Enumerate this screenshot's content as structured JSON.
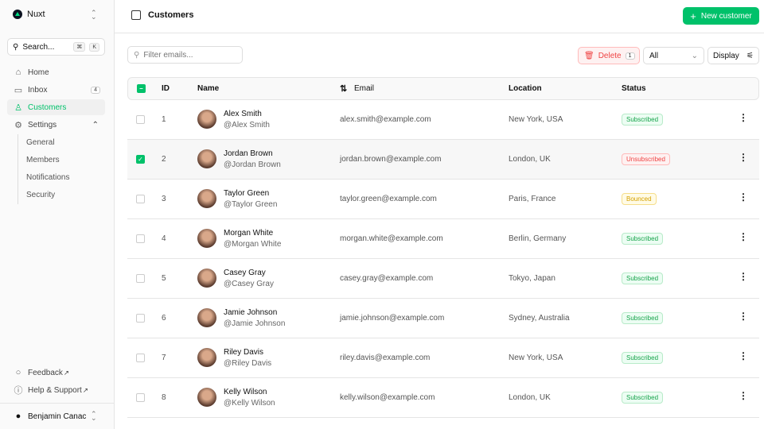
{
  "sidebar": {
    "brand": "Nuxt",
    "search": "Search...",
    "kbd": [
      "⌘",
      "K"
    ],
    "items": [
      {
        "label": "Home",
        "icon": "home-icon"
      },
      {
        "label": "Inbox",
        "icon": "inbox-icon",
        "badge": "4"
      },
      {
        "label": "Customers",
        "icon": "users-icon"
      },
      {
        "label": "Settings",
        "icon": "gear-icon"
      }
    ],
    "settings_sub": [
      "General",
      "Members",
      "Notifications",
      "Security"
    ],
    "footer": [
      {
        "label": "Feedback",
        "icon": "chat-icon"
      },
      {
        "label": "Help & Support",
        "icon": "info-icon"
      }
    ],
    "user": "Benjamin Canac"
  },
  "header": {
    "title": "Customers",
    "new_button": "New customer"
  },
  "toolbar": {
    "filter_placeholder": "Filter emails...",
    "delete": "Delete",
    "delete_count": "1",
    "status_filter": "All",
    "display": "Display"
  },
  "table": {
    "columns": [
      "ID",
      "Name",
      "Email",
      "Location",
      "Status"
    ],
    "rows": [
      {
        "id": "1",
        "name": "Alex Smith",
        "handle": "@Alex Smith",
        "email": "alex.smith@example.com",
        "location": "New York, USA",
        "status": "Subscribed",
        "selected": false
      },
      {
        "id": "2",
        "name": "Jordan Brown",
        "handle": "@Jordan Brown",
        "email": "jordan.brown@example.com",
        "location": "London, UK",
        "status": "Unsubscribed",
        "selected": true
      },
      {
        "id": "3",
        "name": "Taylor Green",
        "handle": "@Taylor Green",
        "email": "taylor.green@example.com",
        "location": "Paris, France",
        "status": "Bounced",
        "selected": false
      },
      {
        "id": "4",
        "name": "Morgan White",
        "handle": "@Morgan White",
        "email": "morgan.white@example.com",
        "location": "Berlin, Germany",
        "status": "Subscribed",
        "selected": false
      },
      {
        "id": "5",
        "name": "Casey Gray",
        "handle": "@Casey Gray",
        "email": "casey.gray@example.com",
        "location": "Tokyo, Japan",
        "status": "Subscribed",
        "selected": false
      },
      {
        "id": "6",
        "name": "Jamie Johnson",
        "handle": "@Jamie Johnson",
        "email": "jamie.johnson@example.com",
        "location": "Sydney, Australia",
        "status": "Subscribed",
        "selected": false
      },
      {
        "id": "7",
        "name": "Riley Davis",
        "handle": "@Riley Davis",
        "email": "riley.davis@example.com",
        "location": "New York, USA",
        "status": "Subscribed",
        "selected": false
      },
      {
        "id": "8",
        "name": "Kelly Wilson",
        "handle": "@Kelly Wilson",
        "email": "kelly.wilson@example.com",
        "location": "London, UK",
        "status": "Subscribed",
        "selected": false
      }
    ]
  },
  "colors": {
    "accent": "#00c16a",
    "danger": "#ef4444",
    "warning": "#d4a000"
  }
}
